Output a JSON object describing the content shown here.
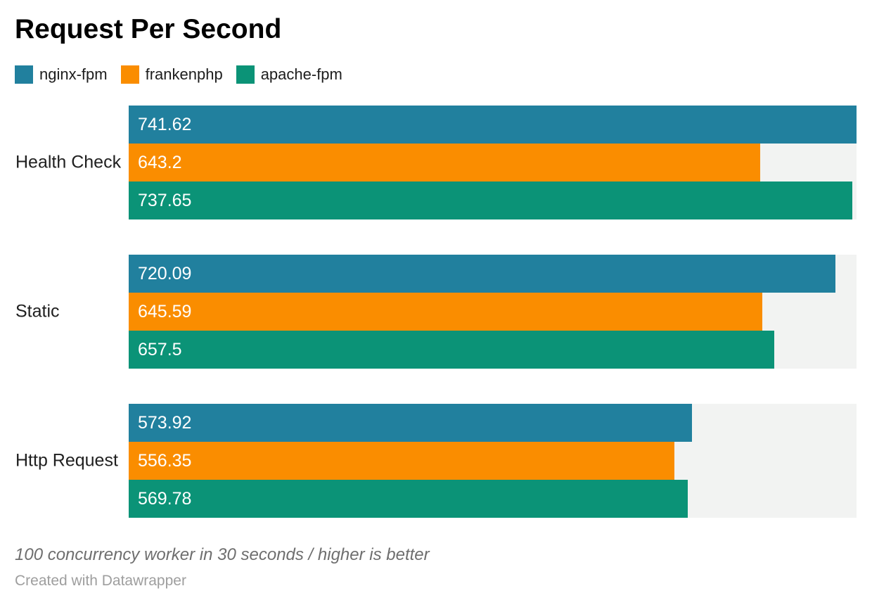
{
  "title": "Request Per Second",
  "footer": {
    "note": "100 concurrency worker in 30 seconds / higher is better",
    "byline": "Created with Datawrapper"
  },
  "colors": {
    "track_background": "#f2f3f2",
    "bar_label_text": "#ffffff",
    "category_text": "#1f1f1f",
    "note_text": "#6e6e6e",
    "byline_text": "#9e9e9e"
  },
  "chart_data": {
    "type": "bar",
    "orientation": "horizontal",
    "title": "Request Per Second",
    "categories": [
      "Health Check",
      "Static",
      "Http Request"
    ],
    "series": [
      {
        "name": "nginx-fpm",
        "color": "#21809e",
        "values": [
          741.62,
          720.09,
          573.92
        ]
      },
      {
        "name": "frankenphp",
        "color": "#fa8d00",
        "values": [
          643.2,
          645.59,
          556.35
        ]
      },
      {
        "name": "apache-fpm",
        "color": "#0b9377",
        "values": [
          737.65,
          657.5,
          569.78
        ]
      }
    ],
    "xlim": [
      0,
      741.62
    ],
    "value_labels": "inside-start",
    "grid": false,
    "legend_position": "top-left",
    "note": "100 concurrency worker in 30 seconds / higher is better"
  }
}
